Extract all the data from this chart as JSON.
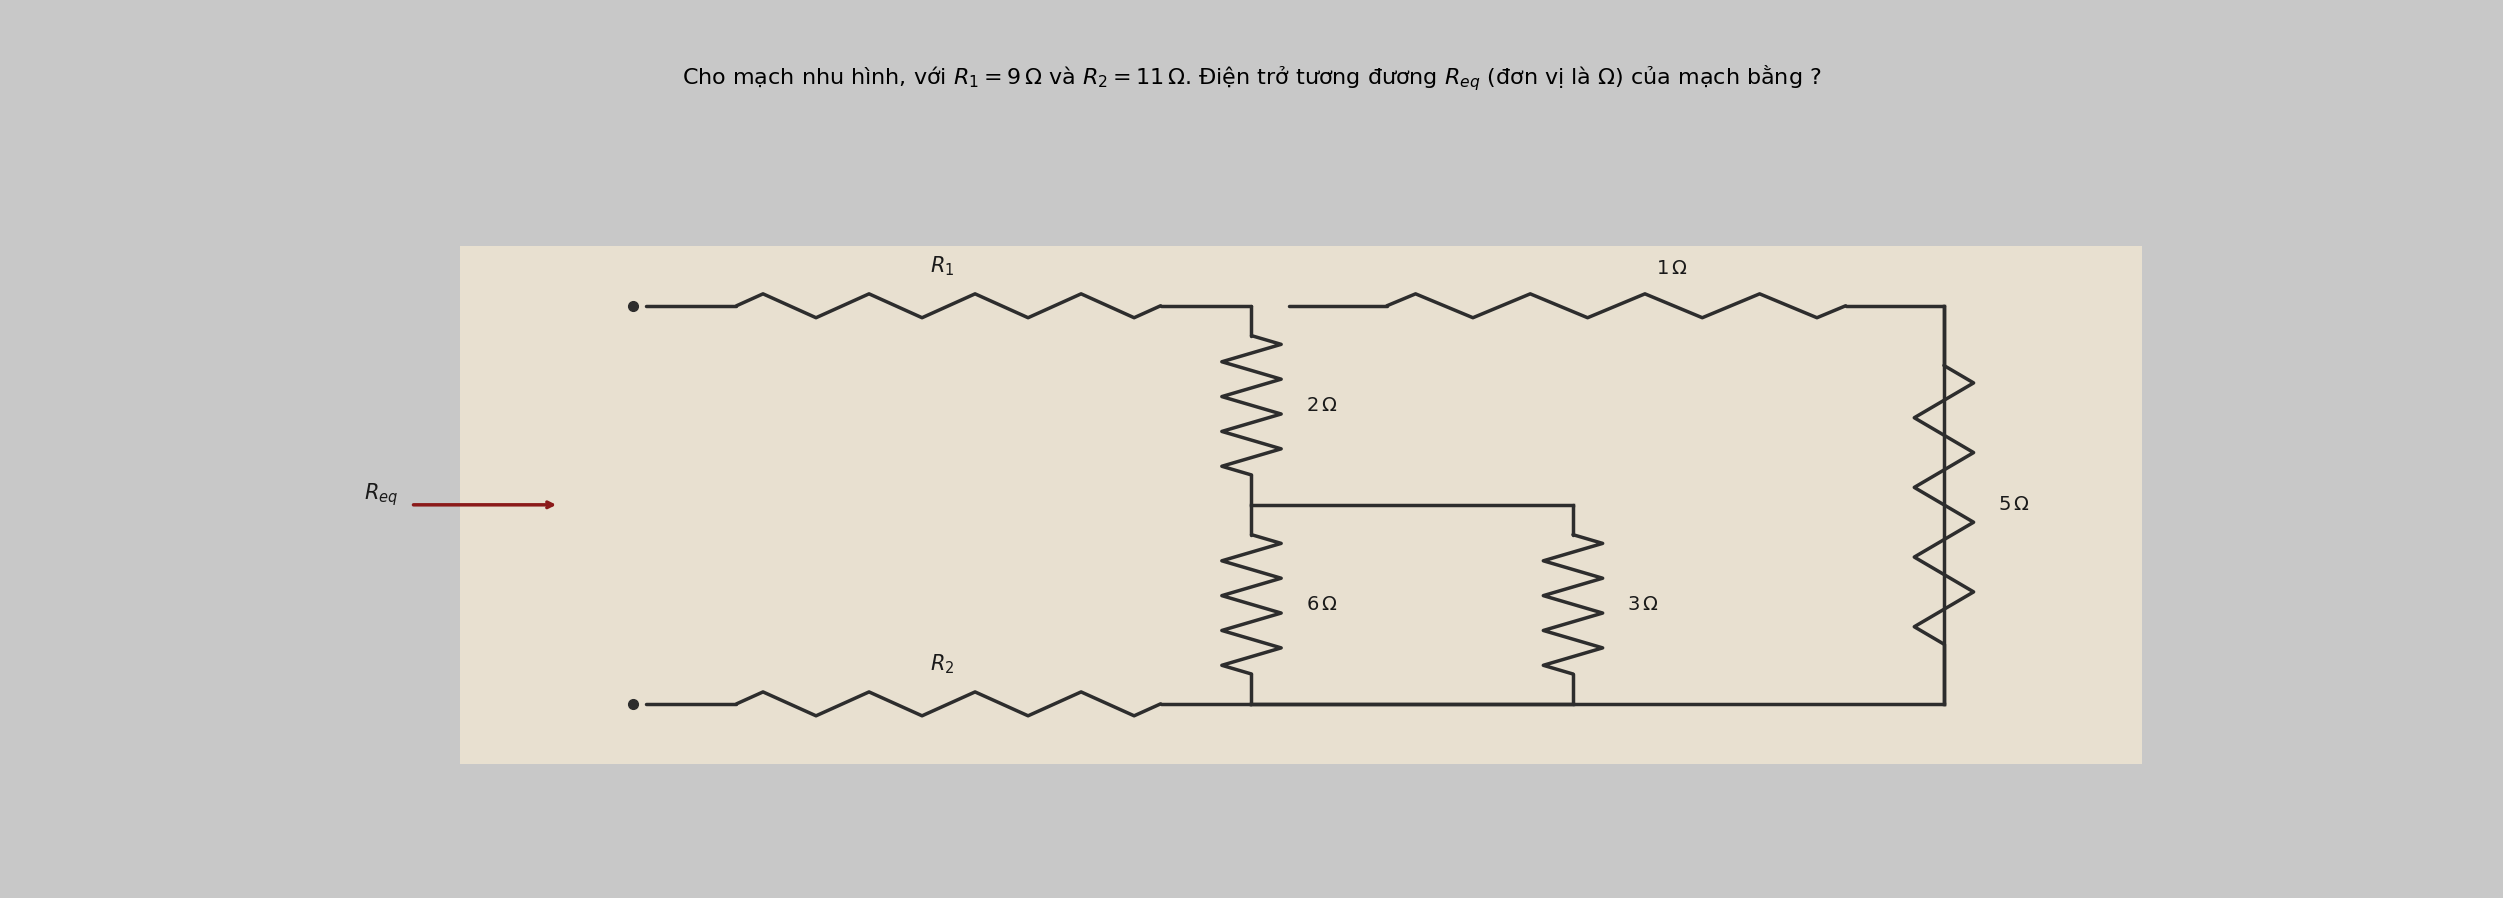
{
  "title_text": "Cho mạch nhu hình, với $R_1 = 9\\,\\Omega$ và $R_2 = 11\\,\\Omega$. Điện trở tương đương $R_{eq}$ (đơn vị là $\\Omega$) của mạch bằng ?",
  "bg_color": "#c8c8c8",
  "circuit_bg": "#e8e0d0",
  "wire_color": "#2d2d2d",
  "resistor_color": "#4a4a4a",
  "label_color": "#1a1a1a",
  "req_arrow_color": "#8b1a1a",
  "title_fontsize": 16,
  "label_fontsize": 15,
  "small_label_fontsize": 14
}
